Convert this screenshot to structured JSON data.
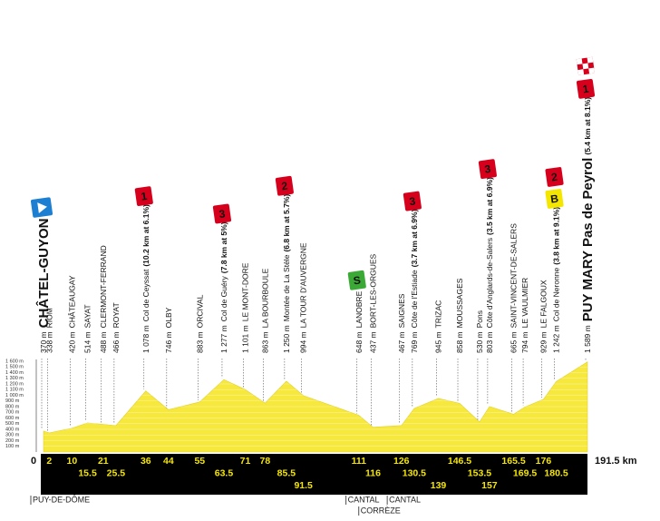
{
  "chart_data": {
    "type": "area",
    "color": "#f7e83d",
    "xlim": [
      0,
      191.5
    ],
    "ylim": [
      0,
      1600
    ],
    "xticks": [
      0,
      {
        "value": 191.5,
        "label": "191.5 km"
      }
    ],
    "yticks": [
      {
        "value": 100,
        "label": "100 m"
      },
      {
        "value": 200,
        "label": "200 m"
      },
      {
        "value": 300,
        "label": "300 m"
      },
      {
        "value": 400,
        "label": "400 m"
      },
      {
        "value": 500,
        "label": "500 m"
      },
      {
        "value": 600,
        "label": "600 m"
      },
      {
        "value": 700,
        "label": "700 m"
      },
      {
        "value": 800,
        "label": "800 m"
      },
      {
        "value": 900,
        "label": "900 m"
      },
      {
        "value": 1000,
        "label": "1 000 m"
      },
      {
        "value": 1100,
        "label": "1 100 m"
      },
      {
        "value": 1200,
        "label": "1 200 m"
      },
      {
        "value": 1300,
        "label": "1 300 m"
      },
      {
        "value": 1400,
        "label": "1 400 m"
      },
      {
        "value": 1500,
        "label": "1 500 m"
      },
      {
        "value": 1600,
        "label": "1 600 m"
      }
    ],
    "x": [
      0,
      2,
      10,
      15.5,
      21,
      25.5,
      36,
      44,
      55,
      63.5,
      71,
      78,
      85.5,
      91.5,
      111,
      116,
      126,
      130.5,
      139,
      146.5,
      153.5,
      157,
      165.5,
      169.5,
      176,
      180.5,
      191.5
    ],
    "values": [
      370,
      338,
      420,
      514,
      488,
      466,
      1078,
      746,
      883,
      1277,
      1101,
      863,
      1250,
      994,
      648,
      437,
      467,
      769,
      945,
      858,
      530,
      803,
      665,
      794,
      929,
      1242,
      1589
    ],
    "value_labels": [
      "370 m",
      "338 m",
      "420 m",
      "514 m",
      "488 m",
      "466 m",
      "1 078 m",
      "746 m",
      "883 m",
      "1 277 m",
      "1 101 m",
      "863 m",
      "1 250 m",
      "994 m",
      "648 m",
      "437 m",
      "467 m",
      "769 m",
      "945 m",
      "858 m",
      "530 m",
      "803 m",
      "665 m",
      "794 m",
      "929 m",
      "1 242 m",
      "1 589 m"
    ],
    "names": [
      "CHÂTEL-GUYON",
      "RIOM",
      "CHÂTEAUGAY",
      "SAYAT",
      "CLERMONT-FERRAND",
      "ROYAT",
      "Col de Ceyssat",
      "OLBY",
      "ORCIVAL",
      "Col de Guéry",
      "LE MONT-DORE",
      "LA BOURBOULE",
      "Montée de La Stèle",
      "LA TOUR D'AUVERGNE",
      "LANOBRE",
      "BORT-LES-ORGUES",
      "SAIGNES",
      "Côte de l'Estiade",
      "TRIZAC",
      "MOUSSAGES",
      "Pons",
      "Côte d'Anglards-de-Salers",
      "SAINT-VINCENT-DE-SALERS",
      "LE VAULMIER",
      "LE FALGOUX",
      "Col de Neronne",
      "PUY MARY Pas de Peyrol"
    ],
    "climbs": [
      {
        "name": "Col de Ceyssat",
        "detail": "(10.2 km at 6.1%)",
        "category": "1"
      },
      {
        "name": "Col de Guéry",
        "detail": "(7.8 km at 5%)",
        "category": "3"
      },
      {
        "name": "Montée de La Stèle",
        "detail": "(6.8 km at 5.7%)",
        "category": "2"
      },
      {
        "name": "Côte de l'Estiade",
        "detail": "(3.7 km at 6.9%)",
        "category": "3"
      },
      {
        "name": "Côte d'Anglards-de-Salers",
        "detail": "(3.5 km at 6.9%)",
        "category": "3"
      },
      {
        "name": "Col de Neronne",
        "detail": "(3.8 km at 9.1%)",
        "category": "2",
        "bonus": "B"
      },
      {
        "name": "PUY MARY Pas de Peyrol",
        "detail": "(5.4 km at 8.1%)",
        "category": "1"
      }
    ],
    "sprint": {
      "name": "LANOBRE",
      "label": "S"
    },
    "regions": [
      "PUY-DE-DÔME",
      "CANTAL",
      "CORRÈZE",
      "CANTAL"
    ]
  }
}
